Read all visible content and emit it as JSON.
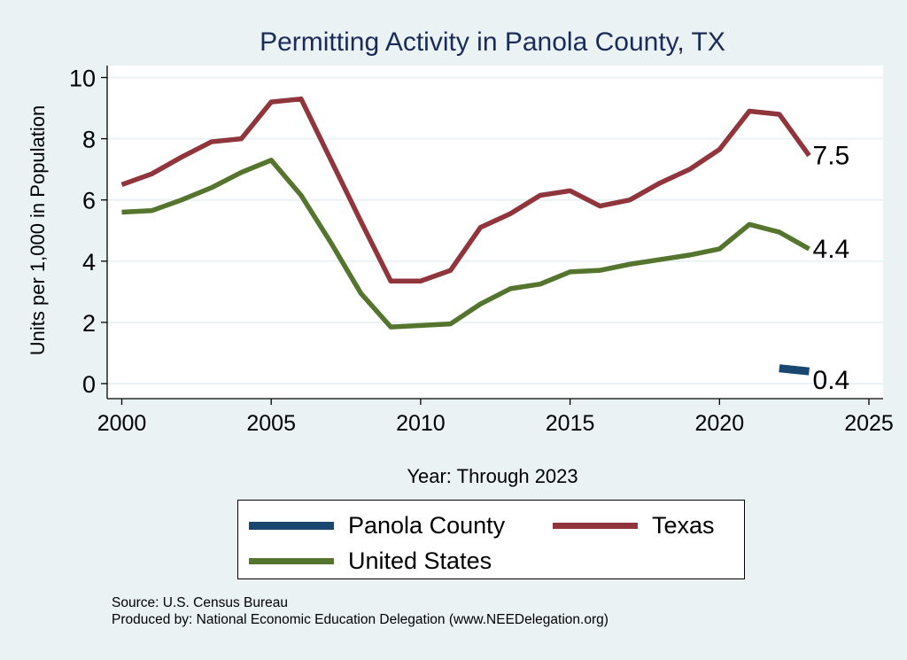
{
  "chart_data": {
    "type": "line",
    "title": "Permitting Activity in Panola County, TX",
    "xlabel": "Year: Through 2023",
    "ylabel": "Units per 1,000 in Population",
    "xlim": [
      2000,
      2025
    ],
    "ylim": [
      0,
      10
    ],
    "xticks": [
      "2000",
      "2005",
      "2010",
      "2015",
      "2020",
      "2025"
    ],
    "yticks": [
      "0",
      "2",
      "4",
      "6",
      "8",
      "10"
    ],
    "grid": true,
    "legend_position": "bottom",
    "series": [
      {
        "name": "Panola County",
        "color": "#1a476f",
        "x": [
          2022,
          2023
        ],
        "values": [
          0.5,
          0.4
        ],
        "end_label": "0.4"
      },
      {
        "name": "Texas",
        "color": "#90353b",
        "x": [
          2000,
          2001,
          2002,
          2003,
          2004,
          2005,
          2006,
          2007,
          2008,
          2009,
          2010,
          2011,
          2012,
          2013,
          2014,
          2015,
          2016,
          2017,
          2018,
          2019,
          2020,
          2021,
          2022,
          2023
        ],
        "values": [
          6.5,
          6.85,
          7.4,
          7.9,
          8.0,
          9.2,
          9.3,
          7.3,
          5.3,
          3.35,
          3.35,
          3.7,
          5.1,
          5.55,
          6.15,
          6.3,
          5.8,
          6.0,
          6.55,
          7.0,
          7.65,
          8.9,
          8.8,
          7.45
        ],
        "end_label": "7.5"
      },
      {
        "name": "United States",
        "color": "#55752f",
        "x": [
          2000,
          2001,
          2002,
          2003,
          2004,
          2005,
          2006,
          2007,
          2008,
          2009,
          2010,
          2011,
          2012,
          2013,
          2014,
          2015,
          2016,
          2017,
          2018,
          2019,
          2020,
          2021,
          2022,
          2023
        ],
        "values": [
          5.6,
          5.65,
          6.0,
          6.4,
          6.9,
          7.3,
          6.15,
          4.6,
          2.95,
          1.85,
          1.9,
          1.95,
          2.6,
          3.1,
          3.25,
          3.65,
          3.7,
          3.9,
          4.05,
          4.2,
          4.4,
          5.2,
          4.95,
          4.4
        ],
        "end_label": "4.4"
      }
    ]
  },
  "footer": {
    "source": "Source: U.S. Census Bureau",
    "produced": "Produced by: National Economic Education Delegation (www.NEEDelegation.org)"
  }
}
